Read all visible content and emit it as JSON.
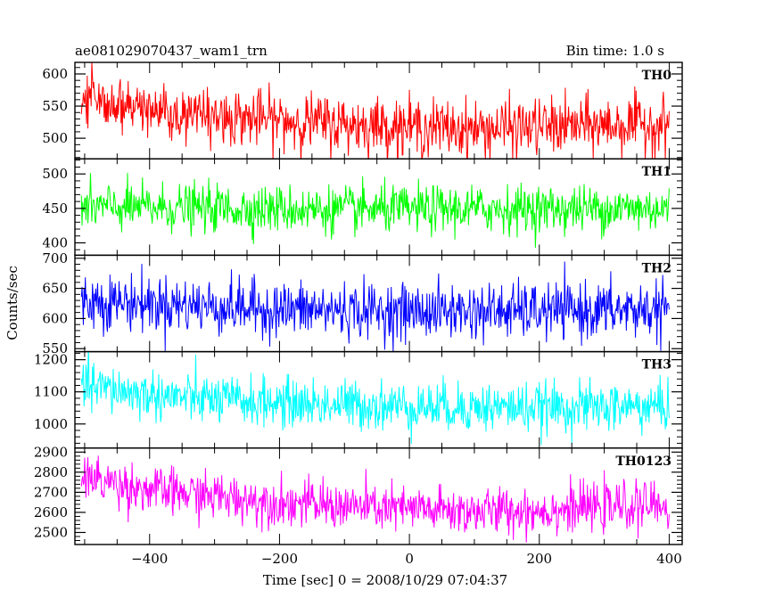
{
  "chart_data": {
    "type": "line",
    "title": "ae081029070437_wam1_trn",
    "subtitle": "Bin time: 1.0 s",
    "xlabel": "Time [sec] 0 = 2008/10/29 07:04:37",
    "ylabel": "Counts/sec",
    "xlim": [
      -515,
      420
    ],
    "x_ticks": [
      -400,
      -200,
      0,
      200,
      400
    ],
    "x_range": [
      -505,
      400
    ],
    "bin_time": 1.0,
    "grid": false,
    "legend": "none",
    "panels": [
      {
        "name": "TH0",
        "color": "#ff0000",
        "ylim": [
          468,
          618
        ],
        "y_ticks": [
          500,
          550,
          600
        ],
        "mean_profile": [
          [
            -505,
            557
          ],
          [
            -400,
            545
          ],
          [
            -300,
            535
          ],
          [
            -200,
            528
          ],
          [
            -100,
            522
          ],
          [
            0,
            518
          ],
          [
            100,
            514
          ],
          [
            200,
            518
          ],
          [
            300,
            520
          ],
          [
            400,
            522
          ]
        ],
        "noise_amplitude": 22
      },
      {
        "name": "TH1",
        "color": "#00ff00",
        "ylim": [
          382,
          522
        ],
        "y_ticks": [
          400,
          450,
          500
        ],
        "mean_profile": [
          [
            -505,
            452
          ],
          [
            -300,
            450
          ],
          [
            -100,
            448
          ],
          [
            100,
            449
          ],
          [
            400,
            450
          ]
        ],
        "noise_amplitude": 17
      },
      {
        "name": "TH2",
        "color": "#0000ff",
        "ylim": [
          545,
          705
        ],
        "y_ticks": [
          550,
          600,
          650,
          700
        ],
        "mean_profile": [
          [
            -505,
            630
          ],
          [
            -400,
            625
          ],
          [
            -200,
            615
          ],
          [
            0,
            612
          ],
          [
            200,
            612
          ],
          [
            400,
            615
          ]
        ],
        "noise_amplitude": 23
      },
      {
        "name": "TH3",
        "color": "#00ffff",
        "ylim": [
          925,
          1225
        ],
        "y_ticks": [
          1000,
          1100,
          1200
        ],
        "mean_profile": [
          [
            -505,
            1120
          ],
          [
            -400,
            1090
          ],
          [
            -300,
            1075
          ],
          [
            -200,
            1065
          ],
          [
            0,
            1055
          ],
          [
            200,
            1050
          ],
          [
            400,
            1055
          ]
        ],
        "noise_amplitude": 38
      },
      {
        "name": "TH0123",
        "color": "#ff00ff",
        "ylim": [
          2440,
          2920
        ],
        "y_ticks": [
          2500,
          2600,
          2700,
          2800,
          2900
        ],
        "mean_profile": [
          [
            -505,
            2780
          ],
          [
            -400,
            2710
          ],
          [
            -300,
            2680
          ],
          [
            -200,
            2650
          ],
          [
            -100,
            2630
          ],
          [
            0,
            2615
          ],
          [
            100,
            2605
          ],
          [
            200,
            2610
          ],
          [
            300,
            2625
          ],
          [
            400,
            2640
          ]
        ],
        "noise_amplitude": 58
      }
    ]
  }
}
